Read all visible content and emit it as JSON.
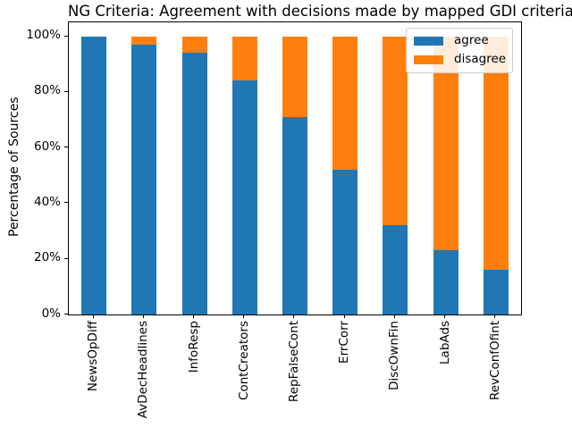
{
  "title": "NG Criteria: Agreement with decisions made by mapped GDI criteria",
  "axes": {
    "ylabel": "Percentage of Sources",
    "yticks": [
      {
        "label": "0%",
        "value": 0
      },
      {
        "label": "20%",
        "value": 20
      },
      {
        "label": "40%",
        "value": 40
      },
      {
        "label": "60%",
        "value": 60
      },
      {
        "label": "80%",
        "value": 80
      },
      {
        "label": "100%",
        "value": 100
      }
    ]
  },
  "colors": {
    "agree": "#1f77b4",
    "disagree": "#ff7f0e",
    "legend_border": "#cccccc",
    "spine": "#000000",
    "background": "#ffffff"
  },
  "chart_data": {
    "type": "bar",
    "stacked": true,
    "title": "NG Criteria: Agreement with decisions made by mapped GDI criteria",
    "xlabel": "",
    "ylabel": "Percentage of Sources",
    "ylim": [
      0,
      105
    ],
    "yticks": [
      0,
      20,
      40,
      60,
      80,
      100
    ],
    "ytick_format": "percent",
    "grid": false,
    "legend_position": "upper right",
    "categories": [
      "NewsOpDiff",
      "AvDecHeadlines",
      "InfoResp",
      "ContCreators",
      "RepFalseCont",
      "ErrCorr",
      "DiscOwnFin",
      "LabAds",
      "RevConfOfint"
    ],
    "series": [
      {
        "name": "agree",
        "color": "#1f77b4",
        "values": [
          100,
          97,
          94,
          84,
          71,
          52,
          32,
          23,
          16
        ]
      },
      {
        "name": "disagree",
        "color": "#ff7f0e",
        "values": [
          0,
          3,
          6,
          16,
          29,
          48,
          68,
          77,
          84
        ]
      }
    ]
  }
}
